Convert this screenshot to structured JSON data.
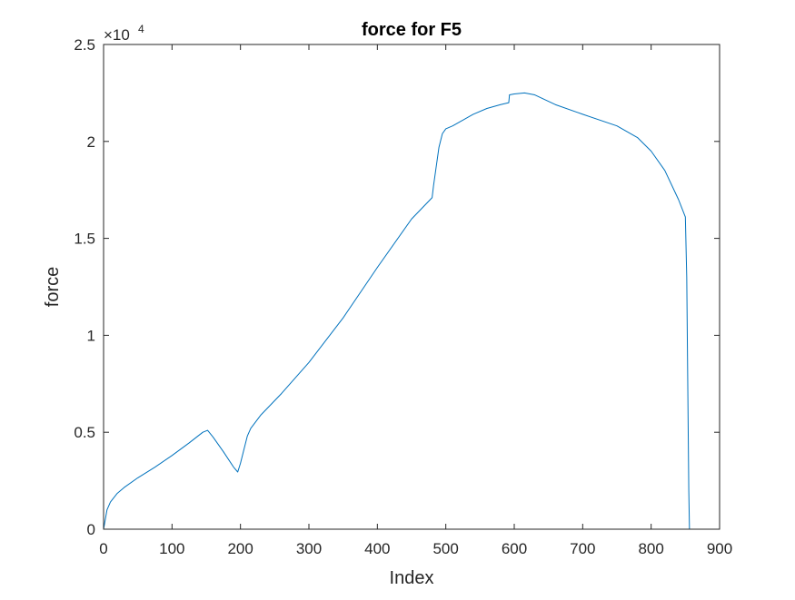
{
  "chart_data": {
    "type": "line",
    "title": "force for F5",
    "xlabel": "Index",
    "ylabel": "force",
    "xlim": [
      0,
      900
    ],
    "ylim": [
      0,
      25000
    ],
    "x_ticks": [
      0,
      100,
      200,
      300,
      400,
      500,
      600,
      700,
      800,
      900
    ],
    "x_tick_labels": [
      "0",
      "100",
      "200",
      "300",
      "400",
      "500",
      "600",
      "700",
      "800",
      "900"
    ],
    "y_ticks": [
      0,
      5000,
      10000,
      15000,
      20000,
      25000
    ],
    "y_tick_labels": [
      "0",
      "0.5",
      "1",
      "1.5",
      "2",
      "2.5"
    ],
    "y_exponent_base": "×10",
    "y_exponent_power": "4",
    "grid": false,
    "line_color": "#0072BD",
    "series": [
      {
        "x": [
          0,
          5,
          10,
          20,
          30,
          50,
          75,
          100,
          125,
          145,
          152,
          160,
          175,
          190,
          196,
          200,
          205,
          210,
          215,
          230,
          260,
          300,
          350,
          400,
          450,
          480,
          482,
          486,
          490,
          495,
          500,
          510,
          520,
          540,
          560,
          580,
          592,
          593,
          600,
          615,
          630,
          660,
          700,
          750,
          780,
          800,
          820,
          840,
          850,
          852,
          855,
          856
        ],
        "y": [
          0,
          1000,
          1400,
          1850,
          2150,
          2650,
          3200,
          3800,
          4450,
          5000,
          5100,
          4750,
          4000,
          3200,
          2950,
          3400,
          4100,
          4800,
          5200,
          5900,
          7000,
          8600,
          10900,
          13500,
          16000,
          17100,
          17700,
          18700,
          19700,
          20400,
          20650,
          20800,
          21000,
          21400,
          21700,
          21900,
          22000,
          22400,
          22450,
          22500,
          22400,
          21900,
          21400,
          20800,
          20200,
          19500,
          18500,
          17000,
          16100,
          13000,
          2000,
          0
        ]
      }
    ]
  }
}
